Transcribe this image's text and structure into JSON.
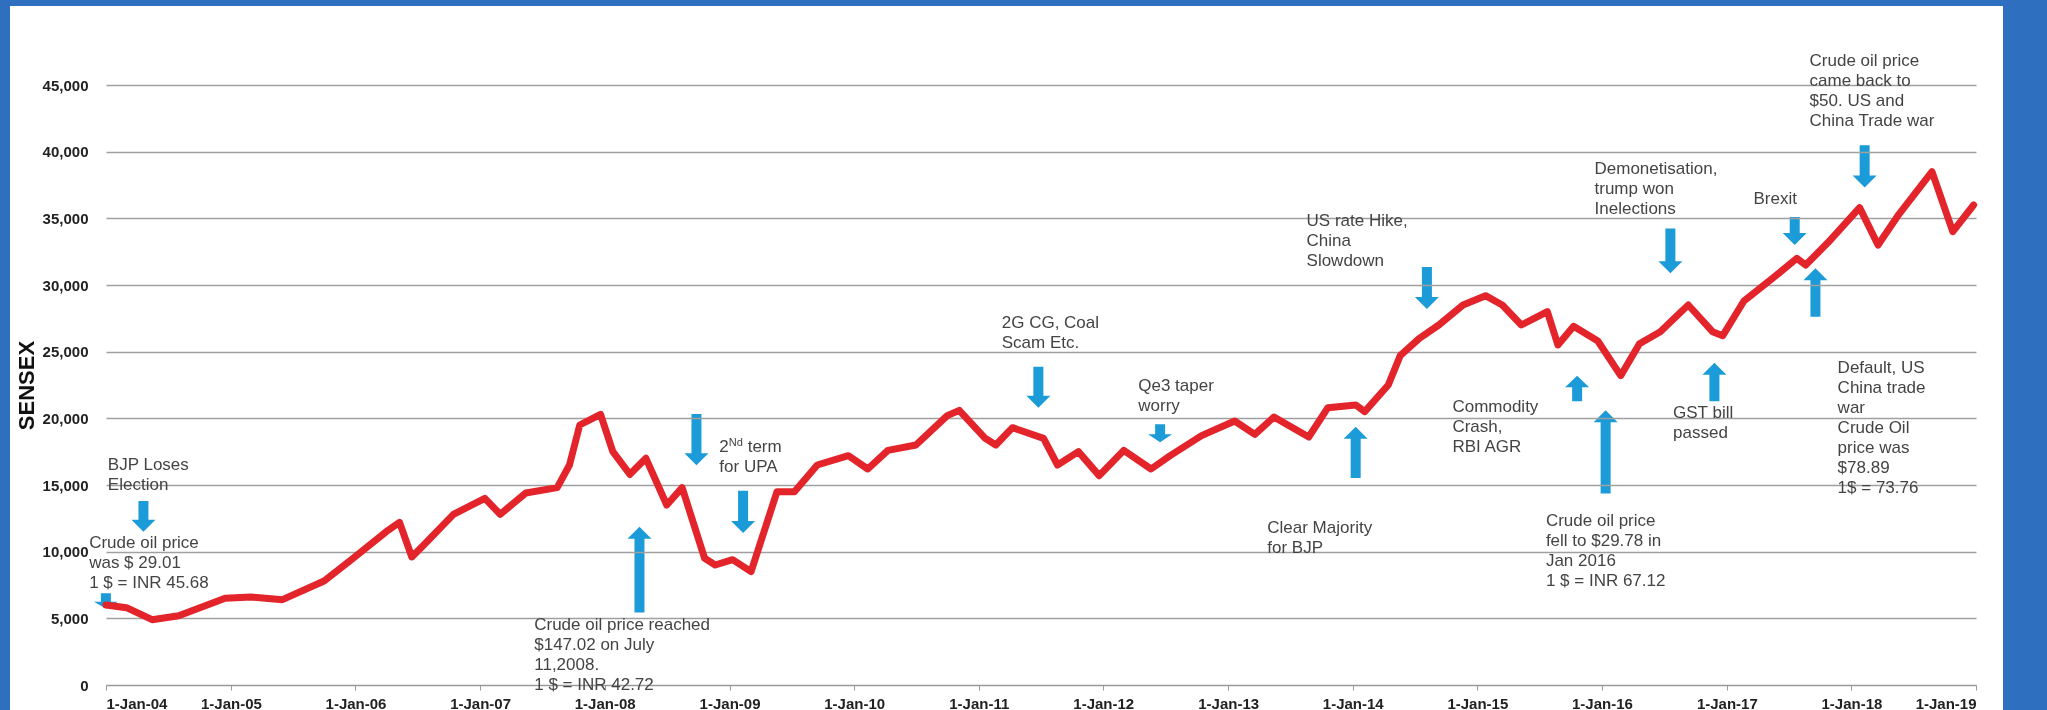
{
  "chart_data": {
    "type": "line",
    "ylabel": "SENSEX",
    "x": [
      "2004-01-01",
      "2004-03-01",
      "2004-05-15",
      "2004-08-01",
      "2004-12-15",
      "2005-03-01",
      "2005-06-01",
      "2005-10-01",
      "2005-12-15",
      "2006-04-01",
      "2006-05-10",
      "2006-06-15",
      "2006-07-20",
      "2006-10-15",
      "2007-01-15",
      "2007-03-01",
      "2007-05-15",
      "2007-08-15",
      "2007-09-20",
      "2007-10-20",
      "2007-12-20",
      "2008-01-25",
      "2008-03-15",
      "2008-05-01",
      "2008-07-01",
      "2008-08-15",
      "2008-10-20",
      "2008-11-20",
      "2009-01-10",
      "2009-03-05",
      "2009-05-20",
      "2009-07-10",
      "2009-09-15",
      "2009-12-15",
      "2010-02-10",
      "2010-04-10",
      "2010-07-01",
      "2010-10-01",
      "2010-11-05",
      "2011-01-20",
      "2011-02-20",
      "2011-04-10",
      "2011-07-10",
      "2011-08-20",
      "2011-10-20",
      "2011-12-20",
      "2012-03-01",
      "2012-05-20",
      "2012-07-15",
      "2012-10-15",
      "2013-01-20",
      "2013-03-20",
      "2013-05-15",
      "2013-08-25",
      "2013-10-20",
      "2014-01-10",
      "2014-02-05",
      "2014-04-15",
      "2014-05-20",
      "2014-07-15",
      "2014-09-10",
      "2014-11-20",
      "2015-01-25",
      "2015-03-15",
      "2015-05-10",
      "2015-07-25",
      "2015-08-25",
      "2015-10-10",
      "2015-12-20",
      "2016-02-25",
      "2016-04-20",
      "2016-06-20",
      "2016-08-20",
      "2016-09-10",
      "2016-11-20",
      "2016-12-20",
      "2017-02-20",
      "2017-05-15",
      "2017-07-25",
      "2017-08-20",
      "2017-10-25",
      "2018-01-25",
      "2018-03-20",
      "2018-05-20",
      "2018-08-25",
      "2018-10-25",
      "2018-12-25"
    ],
    "values": [
      6000,
      5800,
      4900,
      5200,
      6500,
      6600,
      6400,
      7800,
      9300,
      11500,
      12200,
      9600,
      10500,
      12800,
      14000,
      12800,
      14400,
      14800,
      16500,
      19500,
      20300,
      17500,
      15800,
      17000,
      13500,
      14800,
      9500,
      9000,
      9400,
      8500,
      14500,
      14500,
      16500,
      17200,
      16200,
      17600,
      18000,
      20200,
      20600,
      18500,
      18000,
      19300,
      18500,
      16500,
      17500,
      15700,
      17600,
      16200,
      17200,
      18700,
      19800,
      18800,
      20100,
      18600,
      20800,
      21000,
      20500,
      22500,
      24700,
      26000,
      27000,
      28500,
      29200,
      28500,
      27000,
      28000,
      25500,
      26900,
      25800,
      23200,
      25600,
      26500,
      28000,
      28500,
      26500,
      26200,
      28800,
      30500,
      32000,
      31500,
      33200,
      35800,
      33000,
      35300,
      38500,
      34000,
      36000
    ],
    "xlim": [
      "2004-01-01",
      "2019-01-01"
    ],
    "xticks": [
      {
        "value": "2004-01-01",
        "label": "1-Jan-04"
      },
      {
        "value": "2005-01-01",
        "label": "1-Jan-05"
      },
      {
        "value": "2006-01-01",
        "label": "1-Jan-06"
      },
      {
        "value": "2007-01-01",
        "label": "1-Jan-07"
      },
      {
        "value": "2008-01-01",
        "label": "1-Jan-08"
      },
      {
        "value": "2009-01-01",
        "label": "1-Jan-09"
      },
      {
        "value": "2010-01-01",
        "label": "1-Jan-10"
      },
      {
        "value": "2011-01-01",
        "label": "1-Jan-11"
      },
      {
        "value": "2012-01-01",
        "label": "1-Jan-12"
      },
      {
        "value": "2013-01-01",
        "label": "1-Jan-13"
      },
      {
        "value": "2014-01-01",
        "label": "1-Jan-14"
      },
      {
        "value": "2015-01-01",
        "label": "1-Jan-15"
      },
      {
        "value": "2016-01-01",
        "label": "1-Jan-16"
      },
      {
        "value": "2017-01-01",
        "label": "1-Jan-17"
      },
      {
        "value": "2018-01-01",
        "label": "1-Jan-18"
      },
      {
        "value": "2019-01-01",
        "label": "1-Jan-19"
      }
    ],
    "ylim": [
      0,
      45000
    ],
    "yticks": [
      {
        "value": 0,
        "label": "0"
      },
      {
        "value": 5000,
        "label": "5,000"
      },
      {
        "value": 10000,
        "label": "10,000"
      },
      {
        "value": 15000,
        "label": "15,000"
      },
      {
        "value": 20000,
        "label": "20,000"
      },
      {
        "value": 25000,
        "label": "25,000"
      },
      {
        "value": 30000,
        "label": "30,000"
      },
      {
        "value": 35000,
        "label": "35,000"
      },
      {
        "value": 40000,
        "label": "40,000"
      },
      {
        "value": 45000,
        "label": "45,000"
      }
    ],
    "color": "#e3242b",
    "grid": "y",
    "marker": "none",
    "line_style": "solid",
    "annotations": [
      "BJP Loses\nElection",
      "Crude oil price\nwas $ 29.01\n1 $ = INR 45.68",
      "Crude oil price reached\n$147.02 on July\n11,2008.\n1 $ = INR 42.72",
      "2$^{Nd}$ term\nfor UPA",
      "2G CG, Coal\nScam Etc.",
      "Qe3 taper\nworry",
      "Clear Majority\nfor BJP",
      "US rate Hike,\nChina\n Slowdown",
      "Commodity\nCrash,\nRBI AGR",
      "Crude oil price\nfell to $29.78 in\nJan 2016\n1 $ = INR 67.12",
      "Demonetisation,\ntrump won\nInelections",
      "Brexit",
      "GST bill\npassed",
      "Crude oil price\ncame back to\n$50. US and\nChina Trade war",
      "Default, US\nChina trade\nwar\nCrude Oil\nprice was\n$78.89\n1$ = 73.76"
    ]
  }
}
